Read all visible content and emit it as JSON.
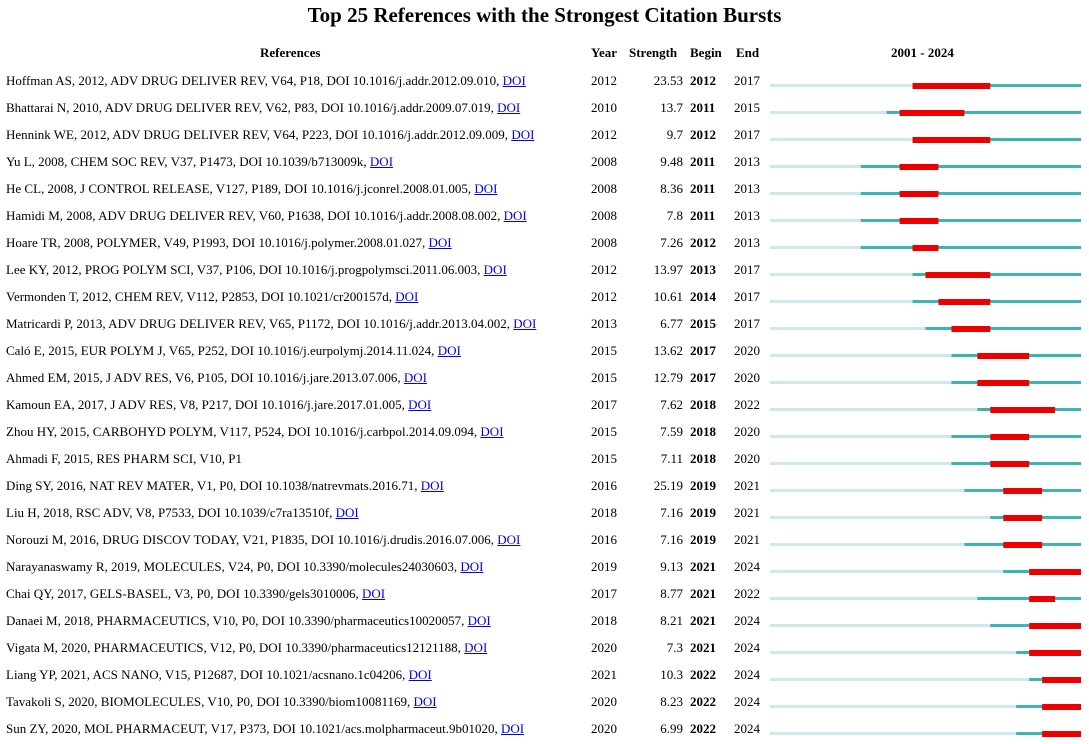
{
  "title": "Top 25 References with the Strongest Citation Bursts",
  "headers": {
    "references": "References",
    "year": "Year",
    "strength": "Strength",
    "begin": "Begin",
    "end": "End",
    "range": "2001 - 2024"
  },
  "colors": {
    "burst": "#ee0000",
    "active": "#3cb4b4",
    "inactive": "#cfe8ea",
    "link": "#0000ee"
  },
  "chart_data": {
    "type": "table",
    "timeline": [
      2001,
      2024
    ],
    "columns": [
      "References",
      "Year",
      "Strength",
      "Begin",
      "End"
    ],
    "rows": [
      {
        "ref": "Hoffman AS, 2012, ADV DRUG DELIVER REV, V64, P18, DOI 10.1016/j.addr.2012.09.010, ",
        "doi": "DOI",
        "year": 2012,
        "strength": "23.53",
        "begin": 2012,
        "end": 2017
      },
      {
        "ref": "Bhattarai N, 2010, ADV DRUG DELIVER REV, V62, P83, DOI 10.1016/j.addr.2009.07.019, ",
        "doi": "DOI",
        "year": 2010,
        "strength": "13.7",
        "begin": 2011,
        "end": 2015
      },
      {
        "ref": "Hennink WE, 2012, ADV DRUG DELIVER REV, V64, P223, DOI 10.1016/j.addr.2012.09.009, ",
        "doi": "DOI",
        "year": 2012,
        "strength": "9.7",
        "begin": 2012,
        "end": 2017
      },
      {
        "ref": "Yu L, 2008, CHEM SOC REV, V37, P1473, DOI 10.1039/b713009k, ",
        "doi": "DOI",
        "year": 2008,
        "strength": "9.48",
        "begin": 2011,
        "end": 2013
      },
      {
        "ref": "He CL, 2008, J CONTROL RELEASE, V127, P189, DOI 10.1016/j.jconrel.2008.01.005, ",
        "doi": "DOI",
        "year": 2008,
        "strength": "8.36",
        "begin": 2011,
        "end": 2013
      },
      {
        "ref": "Hamidi M, 2008, ADV DRUG DELIVER REV, V60, P1638, DOI 10.1016/j.addr.2008.08.002, ",
        "doi": "DOI",
        "year": 2008,
        "strength": "7.8",
        "begin": 2011,
        "end": 2013
      },
      {
        "ref": "Hoare TR, 2008, POLYMER, V49, P1993, DOI 10.1016/j.polymer.2008.01.027, ",
        "doi": "DOI",
        "year": 2008,
        "strength": "7.26",
        "begin": 2012,
        "end": 2013
      },
      {
        "ref": "Lee KY, 2012, PROG POLYM SCI, V37, P106, DOI 10.1016/j.progpolymsci.2011.06.003, ",
        "doi": "DOI",
        "year": 2012,
        "strength": "13.97",
        "begin": 2013,
        "end": 2017
      },
      {
        "ref": "Vermonden T, 2012, CHEM REV, V112, P2853, DOI 10.1021/cr200157d, ",
        "doi": "DOI",
        "year": 2012,
        "strength": "10.61",
        "begin": 2014,
        "end": 2017
      },
      {
        "ref": "Matricardi P, 2013, ADV DRUG DELIVER REV, V65, P1172, DOI 10.1016/j.addr.2013.04.002, ",
        "doi": "DOI",
        "year": 2013,
        "strength": "6.77",
        "begin": 2015,
        "end": 2017
      },
      {
        "ref": "Caló E, 2015, EUR POLYM J, V65, P252, DOI 10.1016/j.eurpolymj.2014.11.024, ",
        "doi": "DOI",
        "year": 2015,
        "strength": "13.62",
        "begin": 2017,
        "end": 2020
      },
      {
        "ref": "Ahmed EM, 2015, J ADV RES, V6, P105, DOI 10.1016/j.jare.2013.07.006, ",
        "doi": "DOI",
        "year": 2015,
        "strength": "12.79",
        "begin": 2017,
        "end": 2020
      },
      {
        "ref": "Kamoun EA, 2017, J ADV RES, V8, P217, DOI 10.1016/j.jare.2017.01.005, ",
        "doi": "DOI",
        "year": 2017,
        "strength": "7.62",
        "begin": 2018,
        "end": 2022
      },
      {
        "ref": "Zhou HY, 2015, CARBOHYD POLYM, V117, P524, DOI 10.1016/j.carbpol.2014.09.094, ",
        "doi": "DOI",
        "year": 2015,
        "strength": "7.59",
        "begin": 2018,
        "end": 2020
      },
      {
        "ref": "Ahmadi F, 2015, RES PHARM SCI, V10, P1",
        "doi": "",
        "year": 2015,
        "strength": "7.11",
        "begin": 2018,
        "end": 2020
      },
      {
        "ref": "Ding SY, 2016, NAT REV MATER, V1, P0, DOI 10.1038/natrevmats.2016.71, ",
        "doi": "DOI",
        "year": 2016,
        "strength": "25.19",
        "begin": 2019,
        "end": 2021
      },
      {
        "ref": "Liu H, 2018, RSC ADV, V8, P7533, DOI 10.1039/c7ra13510f, ",
        "doi": "DOI",
        "year": 2018,
        "strength": "7.16",
        "begin": 2019,
        "end": 2021
      },
      {
        "ref": "Norouzi M, 2016, DRUG DISCOV TODAY, V21, P1835, DOI 10.1016/j.drudis.2016.07.006, ",
        "doi": "DOI",
        "year": 2016,
        "strength": "7.16",
        "begin": 2019,
        "end": 2021
      },
      {
        "ref": "Narayanaswamy R, 2019, MOLECULES, V24, P0, DOI 10.3390/molecules24030603, ",
        "doi": "DOI",
        "year": 2019,
        "strength": "9.13",
        "begin": 2021,
        "end": 2024
      },
      {
        "ref": "Chai QY, 2017, GELS-BASEL, V3, P0, DOI 10.3390/gels3010006, ",
        "doi": "DOI",
        "year": 2017,
        "strength": "8.77",
        "begin": 2021,
        "end": 2022
      },
      {
        "ref": "Danaei M, 2018, PHARMACEUTICS, V10, P0, DOI 10.3390/pharmaceutics10020057, ",
        "doi": "DOI",
        "year": 2018,
        "strength": "8.21",
        "begin": 2021,
        "end": 2024
      },
      {
        "ref": "Vigata M, 2020, PHARMACEUTICS, V12, P0, DOI 10.3390/pharmaceutics12121188, ",
        "doi": "DOI",
        "year": 2020,
        "strength": "7.3",
        "begin": 2021,
        "end": 2024
      },
      {
        "ref": "Liang YP, 2021, ACS NANO, V15, P12687, DOI 10.1021/acsnano.1c04206, ",
        "doi": "DOI",
        "year": 2021,
        "strength": "10.3",
        "begin": 2022,
        "end": 2024
      },
      {
        "ref": "Tavakoli S, 2020, BIOMOLECULES, V10, P0, DOI 10.3390/biom10081169, ",
        "doi": "DOI",
        "year": 2020,
        "strength": "8.23",
        "begin": 2022,
        "end": 2024
      },
      {
        "ref": "Sun ZY, 2020, MOL PHARMACEUT, V17, P373, DOI 10.1021/acs.molpharmaceut.9b01020, ",
        "doi": "DOI",
        "year": 2020,
        "strength": "6.99",
        "begin": 2022,
        "end": 2024
      }
    ]
  }
}
